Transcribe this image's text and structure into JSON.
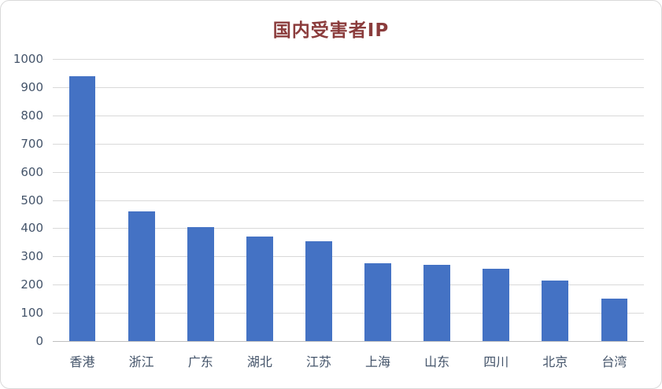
{
  "chart_data": {
    "type": "bar",
    "title": "国内受害者IP",
    "categories": [
      "香港",
      "浙江",
      "广东",
      "湖北",
      "江苏",
      "上海",
      "山东",
      "四川",
      "北京",
      "台湾"
    ],
    "values": [
      940,
      460,
      405,
      370,
      355,
      275,
      270,
      255,
      215,
      150
    ],
    "xlabel": "",
    "ylabel": "",
    "ylim": [
      0,
      1000
    ],
    "ytick_step": 100,
    "grid": true,
    "legend_position": "none",
    "colors": {
      "bar": "#4472C4",
      "title": "#8B3C3C",
      "axis_text": "#44546A",
      "gridline": "#D9D9D9",
      "axis_line": "#BFBFBF",
      "border": "#D9D9D9",
      "background": "#FFFFFF"
    }
  }
}
